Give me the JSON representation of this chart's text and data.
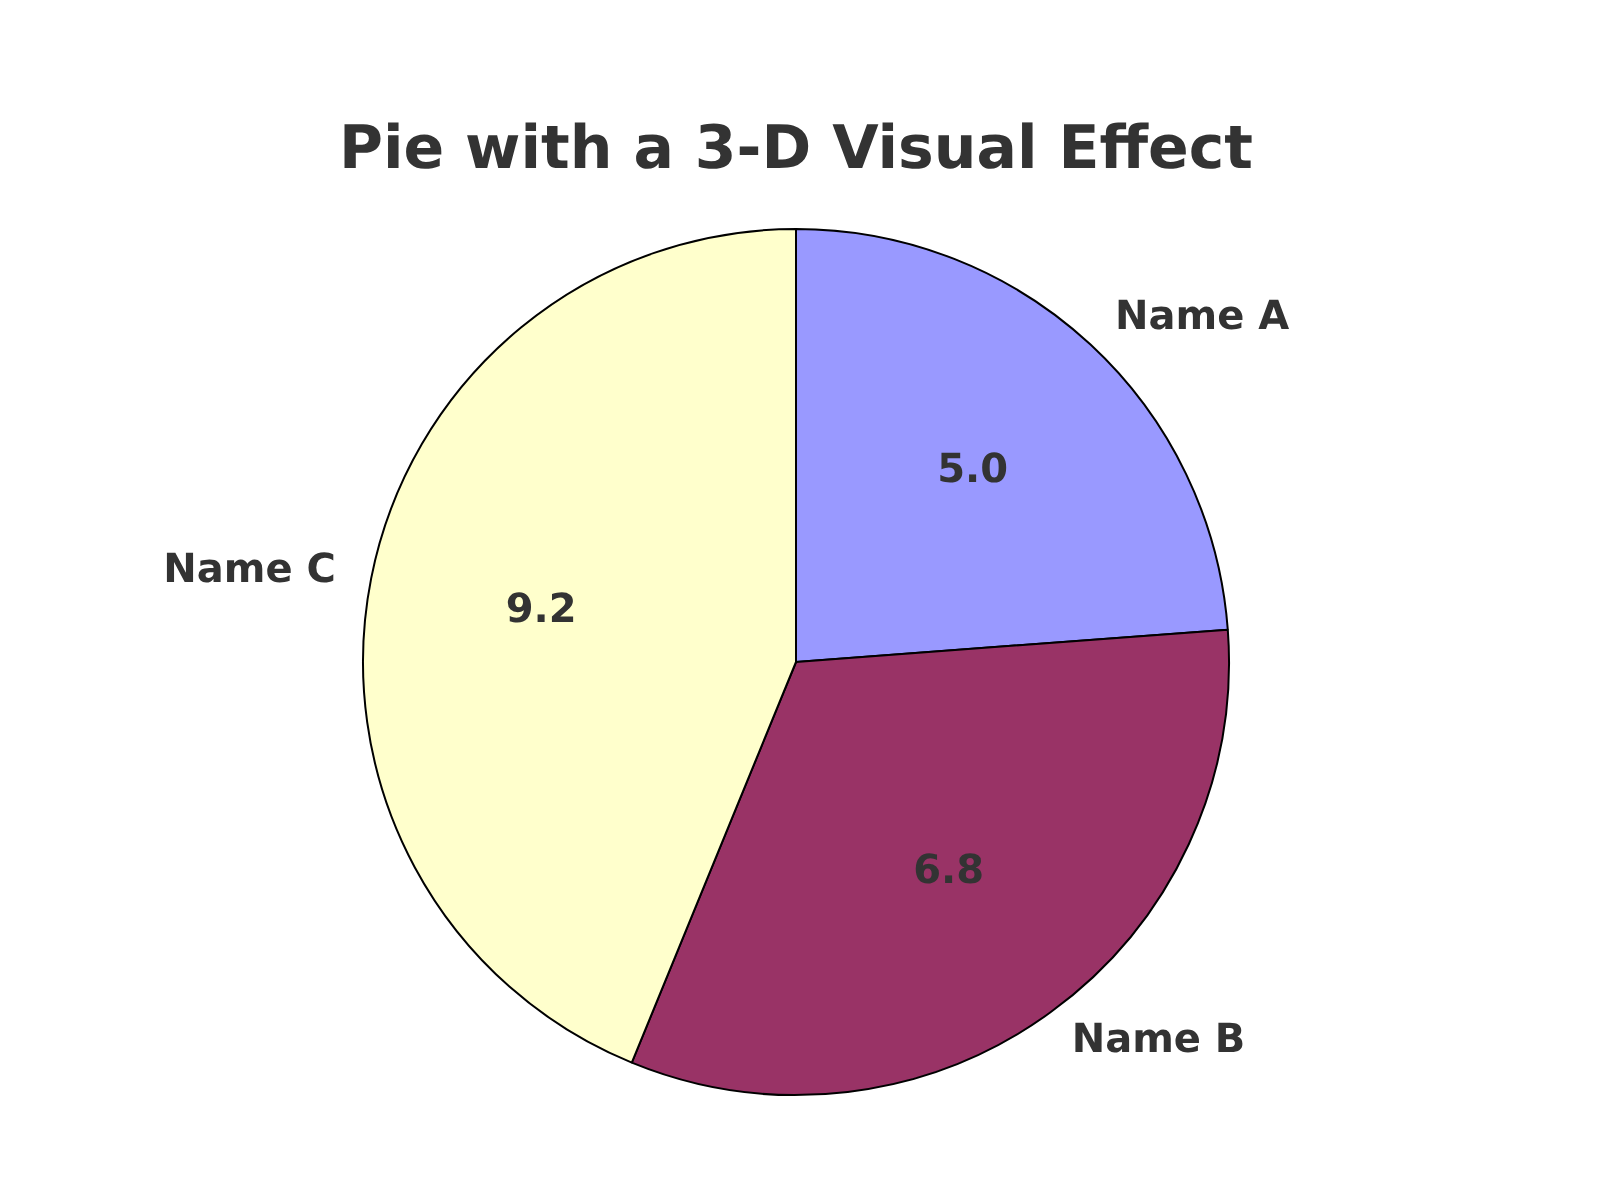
{
  "chart_data": {
    "type": "pie",
    "title": "Pie with a 3-D Visual Effect",
    "categories": [
      "Name A",
      "Name B",
      "Name C"
    ],
    "values": [
      5.0,
      6.8,
      9.2
    ],
    "value_labels": [
      "5.0",
      "6.8",
      "9.2"
    ],
    "colors": [
      "#9999ff",
      "#993366",
      "#ffffcc"
    ],
    "legend": false
  }
}
